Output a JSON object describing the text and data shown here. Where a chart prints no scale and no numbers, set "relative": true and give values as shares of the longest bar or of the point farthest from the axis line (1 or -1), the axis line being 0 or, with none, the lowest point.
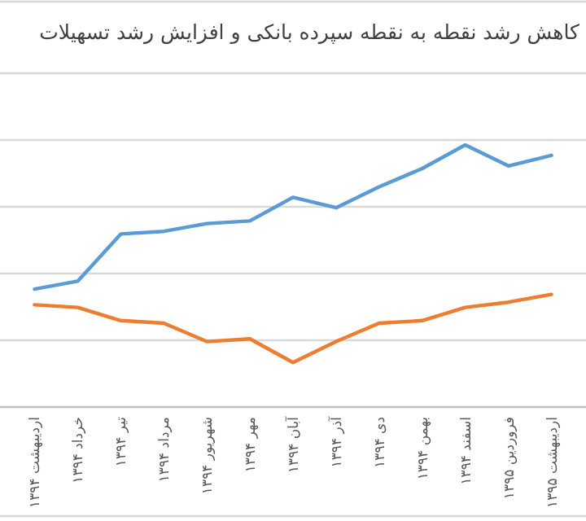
{
  "chart_data": {
    "type": "line",
    "title": "کاهش رشد نقطه به نقطه سپرده بانکی و افزایش رشد تسهیلات",
    "relative": true,
    "grid": "y",
    "categories": [
      "اردیبهشت ۱۳۹۴",
      "خرداد ۱۳۹۴",
      "تیر ۱۳۹۴",
      "مرداد ۱۳۹۴",
      "شهریور ۱۳۹۴",
      "مهر ۱۳۹۴",
      "آبان ۱۳۹۴",
      "آذر ۱۳۹۴",
      "دی ۱۳۹۴",
      "بهمن ۱۳۹۴",
      "اسفند ۱۳۹۴",
      "فروردین ۱۳۹۵",
      "اردیبهشت ۱۳۹۵"
    ],
    "series": [
      {
        "color": "#5b9bd5",
        "values": [
          0.45,
          0.48,
          0.66,
          0.67,
          0.7,
          0.71,
          0.8,
          0.76,
          0.84,
          0.91,
          1,
          0.92,
          0.96
        ]
      },
      {
        "color": "#ed7d31",
        "values": [
          0.39,
          0.38,
          0.33,
          0.32,
          0.25,
          0.26,
          0.17,
          0.25,
          0.32,
          0.33,
          0.38,
          0.4,
          0.43
        ]
      }
    ]
  }
}
